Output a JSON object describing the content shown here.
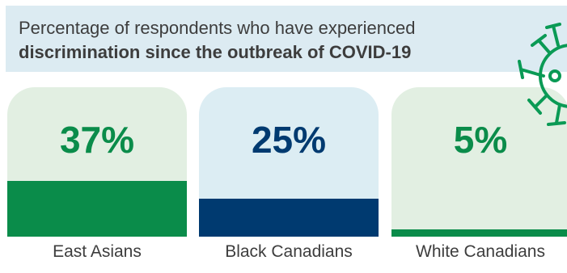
{
  "chart_data": {
    "type": "bar",
    "title_line1": "Percentage of respondents who have experienced",
    "title_line2": "discrimination since the outbreak of COVID-19",
    "categories": [
      "East Asians",
      "Black Canadians",
      "White Canadians"
    ],
    "values": [
      37,
      25,
      5
    ],
    "labels": [
      "37%",
      "25%",
      "5%"
    ],
    "ylim": [
      0,
      100
    ],
    "colors": {
      "fill": [
        "#0a8c4a",
        "#003a70",
        "#0a8c4a"
      ],
      "background": [
        "#e2efe2",
        "#dcedf3",
        "#e2efe2"
      ],
      "label": [
        "#0a8c4a",
        "#003a70",
        "#0a8c4a"
      ],
      "title_band": "#dcebf2",
      "virus": "#0a9a55"
    }
  }
}
